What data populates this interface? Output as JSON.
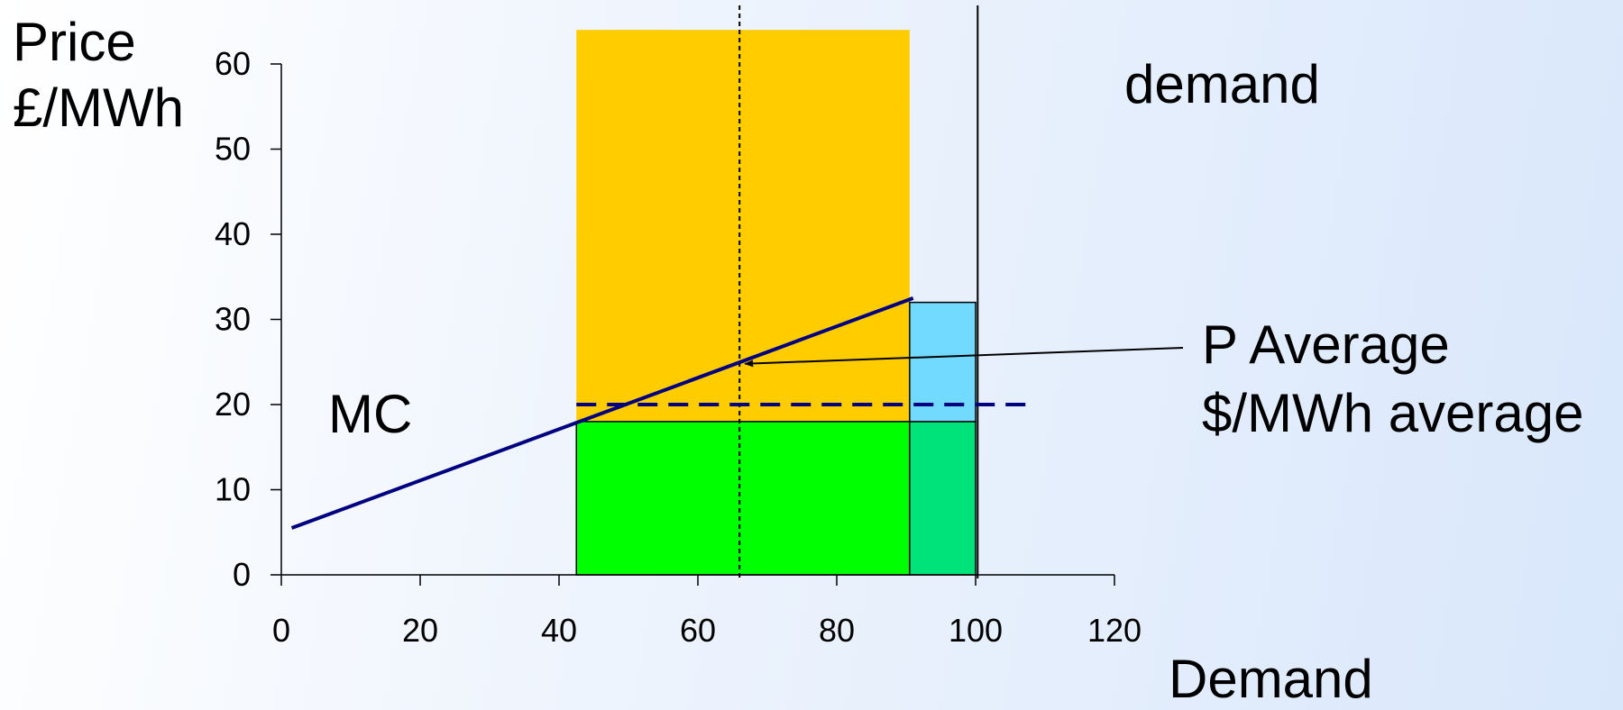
{
  "chart_data": {
    "type": "area",
    "ylabel": [
      "Price",
      "£/MWh"
    ],
    "xlabel": "Demand",
    "xlim": [
      0,
      120
    ],
    "ylim": [
      0,
      60
    ],
    "x_ticks": [
      0,
      20,
      40,
      60,
      80,
      100,
      120
    ],
    "y_ticks": [
      0,
      10,
      20,
      30,
      40,
      50,
      60
    ],
    "grid": false,
    "series": [
      {
        "name": "MC",
        "kind": "line",
        "color": "#000080",
        "points": [
          [
            1.5,
            5.5
          ],
          [
            91,
            32.5
          ]
        ]
      }
    ],
    "areas": [
      {
        "x": [
          42.5,
          90.5
        ],
        "y": [
          18,
          64
        ],
        "color": "#ffcc00",
        "outline": false
      },
      {
        "x": [
          42.5,
          90.5
        ],
        "y": [
          0,
          18
        ],
        "color": "#00ff00",
        "outline": true
      },
      {
        "x": [
          90.5,
          100
        ],
        "y": [
          0,
          18
        ],
        "color": "#00e27a",
        "outline": true
      },
      {
        "x": [
          90.5,
          100
        ],
        "y": [
          18,
          32
        ],
        "color": "#72daff",
        "outline": true
      }
    ],
    "reference_lines": [
      {
        "type": "vertical",
        "x": 66,
        "style": "dotted"
      },
      {
        "type": "vertical",
        "x": 100.3,
        "style": "solid",
        "label": "demand"
      },
      {
        "type": "horizontal",
        "y": 20,
        "x_range": [
          42.5,
          108
        ],
        "style": "dashed",
        "color": "#000080",
        "label": "$/MWh average"
      }
    ],
    "annotations": [
      {
        "text": "MC"
      },
      {
        "text": "P Average",
        "arrow_to": [
          66,
          25
        ]
      }
    ]
  }
}
